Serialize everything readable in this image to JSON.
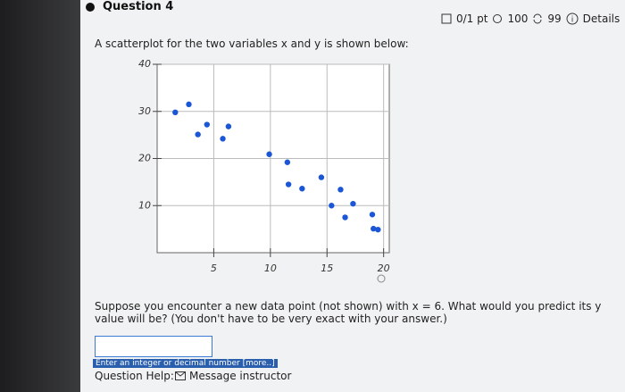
{
  "header": {
    "title": "Question 4",
    "score": "0/1 pt",
    "tries": "100",
    "retries": "99",
    "details": "Details"
  },
  "question": {
    "intro": "A scatterplot for the two variables x and y is shown below:",
    "prompt": "Suppose you encounter a new data point (not shown) with x = 6. What would you predict its y value will be? (You don't have to be very exact with your answer.)"
  },
  "chart_data": {
    "type": "scatter",
    "color": "#1a56d6",
    "grid": true,
    "x": [
      1.6,
      2.8,
      3.6,
      4.4,
      5.8,
      6.3,
      9.9,
      11.5,
      11.6,
      12.8,
      14.5,
      15.4,
      16.2,
      16.6,
      17.3,
      19.0,
      19.1,
      19.5
    ],
    "values": [
      29.8,
      31.5,
      25.1,
      27.2,
      24.2,
      26.8,
      20.9,
      19.2,
      14.5,
      13.6,
      16.0,
      10.0,
      13.4,
      7.5,
      10.4,
      8.1,
      5.1,
      4.9
    ],
    "xlim": [
      0,
      20.5
    ],
    "ylim": [
      0,
      40
    ],
    "xticks": [
      5,
      10,
      15,
      20
    ],
    "yticks": [
      10,
      20,
      30,
      40
    ]
  },
  "answer": {
    "hint": "Enter an integer or decimal number [more..]",
    "help_label": "Question Help:",
    "help_link": "Message instructor"
  }
}
